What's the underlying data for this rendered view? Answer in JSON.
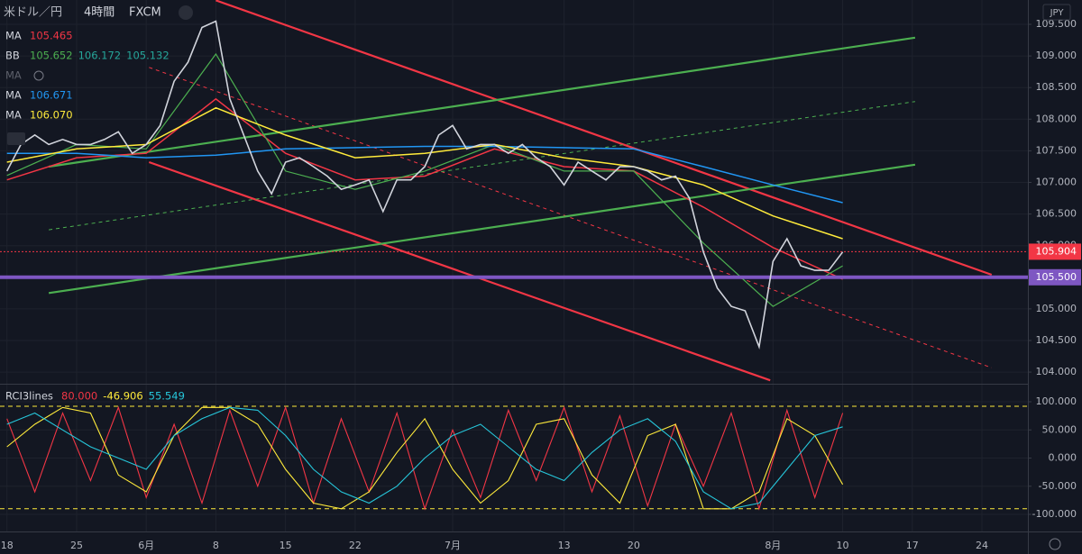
{
  "chart_data": [
    {
      "type": "line",
      "title": "米ドル／円",
      "interval": "4時間",
      "source": "FXCM",
      "currency": "JPY",
      "xlim": [
        -0.5,
        73.3
      ],
      "xticks": [
        {
          "value": 0,
          "label": "18"
        },
        {
          "value": 5,
          "label": "25"
        },
        {
          "value": 10,
          "label": "6月"
        },
        {
          "value": 15,
          "label": "8"
        },
        {
          "value": 20,
          "label": "15"
        },
        {
          "value": 25,
          "label": "22"
        },
        {
          "value": 32,
          "label": "7月"
        },
        {
          "value": 40,
          "label": "13"
        },
        {
          "value": 45,
          "label": "20"
        },
        {
          "value": 55,
          "label": "8月"
        },
        {
          "value": 60,
          "label": "10"
        },
        {
          "value": 65,
          "label": "17"
        },
        {
          "value": 70,
          "label": "24"
        }
      ],
      "ylim": [
        103.83,
        109.885
      ],
      "yticks": [
        {
          "value": 104,
          "label": "104.000"
        },
        {
          "value": 104.5,
          "label": "104.500"
        },
        {
          "value": 105,
          "label": "105.000"
        },
        {
          "value": 105.5,
          "label": "105.500"
        },
        {
          "value": 106,
          "label": "106.000"
        },
        {
          "value": 106.5,
          "label": "106.500"
        },
        {
          "value": 107,
          "label": "107.000"
        },
        {
          "value": 107.5,
          "label": "107.500"
        },
        {
          "value": 108,
          "label": "108.000"
        },
        {
          "value": 108.5,
          "label": "108.500"
        },
        {
          "value": 109,
          "label": "109.000"
        },
        {
          "value": 109.5,
          "label": "109.500"
        }
      ],
      "grid": true,
      "x": [
        0,
        1,
        2,
        3,
        4,
        5,
        6,
        7,
        8,
        9,
        10,
        11,
        12,
        13,
        14,
        15,
        16,
        17,
        18,
        19,
        20,
        21,
        22,
        23,
        24,
        25,
        26,
        27,
        28,
        29,
        30,
        31,
        32,
        33,
        34,
        35,
        36,
        37,
        38,
        39,
        40,
        41,
        42,
        43,
        44,
        45,
        46,
        47,
        48,
        49,
        50,
        51,
        52,
        53,
        54,
        55,
        56,
        57,
        58,
        59,
        60
      ],
      "series": [
        {
          "color": "#d1d4dc",
          "values": [
            107.18,
            107.6,
            107.75,
            107.6,
            107.68,
            107.6,
            107.6,
            107.68,
            107.8,
            107.46,
            107.6,
            107.9,
            108.6,
            108.9,
            109.45,
            109.55,
            108.32,
            107.75,
            107.18,
            106.82,
            107.32,
            107.39,
            107.25,
            107.1,
            106.89,
            106.96,
            107.04,
            106.54,
            107.04,
            107.04,
            107.25,
            107.75,
            107.9,
            107.53,
            107.6,
            107.6,
            107.46,
            107.6,
            107.39,
            107.25,
            106.96,
            107.32,
            107.18,
            107.04,
            107.25,
            107.25,
            107.18,
            107.04,
            107.1,
            106.75,
            105.9,
            105.33,
            105.04,
            104.97,
            104.4,
            105.75,
            106.11,
            105.68,
            105.61,
            105.61,
            105.9
          ]
        }
      ],
      "indicators": [
        {
          "name": "MA",
          "color": "#f23645",
          "values": [
            105.465
          ],
          "value_labels": [
            "105.465"
          ],
          "line": {
            "x": [
              0,
              5,
              10,
              15,
              20,
              25,
              30,
              35,
              40,
              45,
              50,
              55,
              60
            ],
            "y": [
              107.04,
              107.39,
              107.46,
              108.32,
              107.46,
              107.04,
              107.1,
              107.53,
              107.25,
              107.18,
              106.61,
              105.97,
              105.47
            ]
          }
        },
        {
          "name": "BB",
          "color": "#4caf50",
          "values": [
            105.652,
            106.172,
            105.132
          ],
          "value_labels": [
            "105.652",
            "106.172",
            "105.132"
          ],
          "line": {
            "x": [
              0,
              5,
              10,
              15,
              20,
              25,
              30,
              35,
              40,
              45,
              50,
              55,
              60
            ],
            "y": [
              107.11,
              107.6,
              107.53,
              109.03,
              107.18,
              106.89,
              107.18,
              107.6,
              107.18,
              107.18,
              106.04,
              105.04,
              105.68
            ]
          }
        },
        {
          "name": "MA",
          "color": "#787b86"
        },
        {
          "name": "MA",
          "color": "#2196f3",
          "values": [
            106.671
          ],
          "value_labels": [
            "106.671"
          ],
          "line": {
            "x": [
              0,
              5,
              10,
              15,
              20,
              25,
              30,
              35,
              40,
              45,
              50,
              55,
              60
            ],
            "y": [
              107.46,
              107.46,
              107.39,
              107.43,
              107.53,
              107.55,
              107.57,
              107.57,
              107.55,
              107.53,
              107.25,
              106.96,
              106.68
            ]
          }
        },
        {
          "name": "MA",
          "color": "#ffeb3b",
          "values": [
            106.07
          ],
          "value_labels": [
            "106.070"
          ],
          "line": {
            "x": [
              0,
              5,
              10,
              15,
              20,
              25,
              30,
              35,
              40,
              45,
              50,
              55,
              60
            ],
            "y": [
              107.32,
              107.53,
              107.6,
              108.18,
              107.75,
              107.39,
              107.46,
              107.6,
              107.39,
              107.25,
              106.96,
              106.47,
              106.11
            ]
          }
        }
      ],
      "trendlines": [
        {
          "color": "#f23645",
          "dashed": false,
          "x": [
            15.0,
            70.7
          ],
          "y": [
            109.88,
            105.54
          ]
        },
        {
          "color": "#f23645",
          "dashed": false,
          "x": [
            10.2,
            54.8
          ],
          "y": [
            107.32,
            103.87
          ]
        },
        {
          "color": "#f23645",
          "dashed": true,
          "x": [
            10.2,
            70.7
          ],
          "y": [
            108.82,
            104.07
          ]
        },
        {
          "color": "#4caf50",
          "dashed": false,
          "x": [
            3.0,
            65.2
          ],
          "y": [
            107.25,
            109.29
          ]
        },
        {
          "color": "#4caf50",
          "dashed": false,
          "x": [
            3.0,
            65.2
          ],
          "y": [
            105.25,
            107.28
          ]
        },
        {
          "color": "#4caf50",
          "dashed": true,
          "x": [
            3.0,
            65.2
          ],
          "y": [
            106.25,
            108.28
          ]
        }
      ],
      "price_lines": [
        {
          "value": 105.904,
          "label": "105.904",
          "color": "#f23645",
          "dashed": true
        },
        {
          "value": 105.5,
          "label": "105.500",
          "color": "#7e57c2",
          "dashed": false
        }
      ]
    },
    {
      "type": "line",
      "title": "RCI3lines",
      "ylim": [
        -130.4,
        128.8
      ],
      "yticks": [
        {
          "value": 100,
          "label": "100.000"
        },
        {
          "value": 50,
          "label": "50.000"
        },
        {
          "value": 0,
          "label": "0.000"
        },
        {
          "value": -50,
          "label": "-50.000"
        },
        {
          "value": -100,
          "label": "-100.000"
        }
      ],
      "bands": [
        92,
        -90
      ],
      "x": [
        0,
        2,
        4,
        6,
        8,
        10,
        12,
        14,
        16,
        18,
        20,
        22,
        24,
        26,
        28,
        30,
        32,
        34,
        36,
        38,
        40,
        42,
        44,
        46,
        48,
        50,
        52,
        54,
        56,
        58,
        60
      ],
      "series": [
        {
          "color": "#f23645",
          "current": 80,
          "current_label": "80.000",
          "values": [
            70,
            -60,
            80,
            -40,
            90,
            -70,
            60,
            -80,
            85,
            -50,
            90,
            -80,
            70,
            -60,
            80,
            -90,
            50,
            -70,
            85,
            -40,
            90,
            -60,
            75,
            -85,
            60,
            -50,
            80,
            -90,
            85,
            -70,
            80
          ]
        },
        {
          "color": "#ffeb3b",
          "current": -46.906,
          "current_label": "-46.906",
          "values": [
            20,
            60,
            90,
            80,
            -30,
            -60,
            40,
            90,
            90,
            60,
            -20,
            -80,
            -90,
            -60,
            10,
            70,
            -20,
            -80,
            -40,
            60,
            70,
            -30,
            -80,
            40,
            60,
            -90,
            -90,
            -60,
            70,
            40,
            -46.906
          ]
        },
        {
          "color": "#26c6da",
          "current": 55.549,
          "current_label": "55.549",
          "values": [
            60,
            80,
            50,
            20,
            0,
            -20,
            40,
            70,
            90,
            85,
            40,
            -20,
            -60,
            -80,
            -50,
            0,
            40,
            60,
            20,
            -20,
            -40,
            10,
            50,
            70,
            30,
            -60,
            -90,
            -80,
            -20,
            40,
            55.549
          ]
        }
      ]
    }
  ]
}
